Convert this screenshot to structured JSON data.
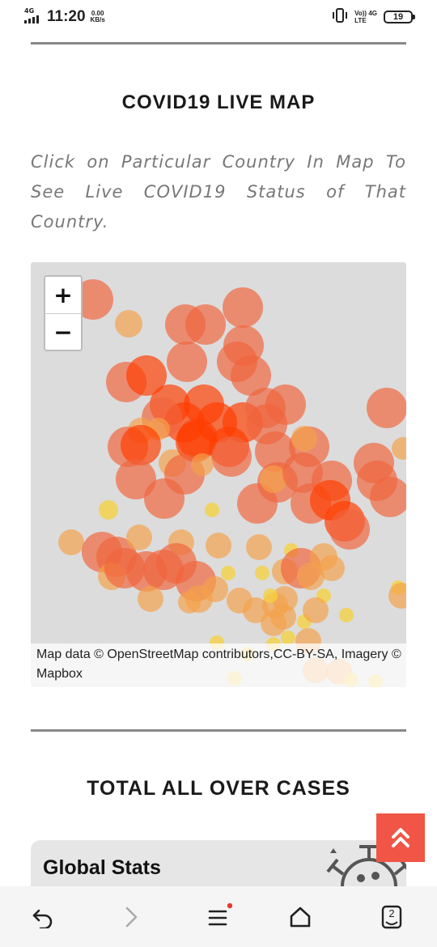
{
  "status_bar": {
    "network_type": "4G",
    "time": "11:20",
    "speed_value": "0.00",
    "speed_unit": "KB/s",
    "volte_top": "Vo)) 4G",
    "volte_bottom": "LTE",
    "battery": "19"
  },
  "map_section": {
    "title": "COVID19 LIVE MAP",
    "instructions": "Click on Particular Country In Map To See Live COVID19 Status of That Country.",
    "zoom_in_label": "+",
    "zoom_out_label": "−",
    "attribution": "Map data © OpenStreetMap contributors,CC-BY-SA, Imagery © Mapbox"
  },
  "totals_section": {
    "title": "TOTAL ALL OVER CASES",
    "card_title": "Global Stats"
  },
  "colors": {
    "bubble_high": "#ff3c00",
    "bubble_mid": "#f0643c",
    "bubble_low": "#f5a04a",
    "bubble_minimal": "#f5d23c",
    "scroll_top": "#f05545",
    "map_bg": "#dcdcdc"
  },
  "icons": {
    "scroll_top": "double-chevron-up-icon",
    "back": "undo-arrow-icon",
    "forward": "chevron-right-icon",
    "menu": "menu-icon",
    "home": "home-icon",
    "tabs": "tabs-icon"
  },
  "nav_bar": {
    "tab_count": "2",
    "menu_has_notification": true
  }
}
